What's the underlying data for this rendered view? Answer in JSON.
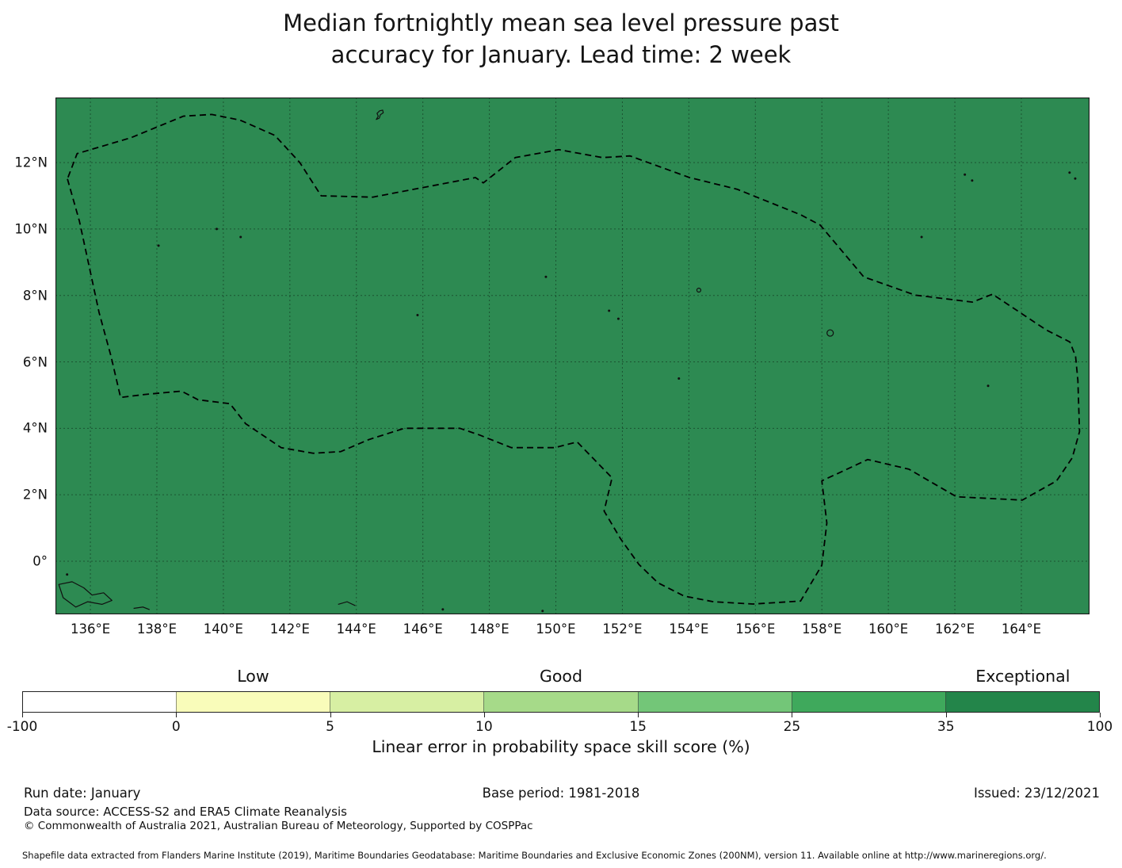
{
  "title": {
    "line1": "Median fortnightly mean sea level pressure past",
    "line2": "accuracy for January. Lead time: 2 week"
  },
  "chart_data": {
    "type": "heatmap",
    "subtype": "geographic EEZ skill-score map, Western Pacific (matplotlib style)",
    "title": "Median fortnightly mean sea level pressure past accuracy for January. Lead time: 2 week",
    "x_tick_labels": [
      "136°E",
      "138°E",
      "140°E",
      "142°E",
      "144°E",
      "146°E",
      "148°E",
      "150°E",
      "152°E",
      "154°E",
      "156°E",
      "158°E",
      "160°E",
      "162°E",
      "164°E"
    ],
    "x_tick_lons": [
      136,
      138,
      140,
      142,
      144,
      146,
      148,
      150,
      152,
      154,
      156,
      158,
      160,
      162,
      164
    ],
    "y_tick_labels": [
      "12°N",
      "10°N",
      "8°N",
      "6°N",
      "4°N",
      "2°N",
      "0°"
    ],
    "y_tick_lats": [
      12,
      10,
      8,
      6,
      4,
      2,
      0
    ],
    "lon_range": [
      134.95,
      166.05
    ],
    "lat_range": [
      -1.6,
      13.96
    ],
    "grid": true,
    "map_fill_color": "#2d8a52",
    "map_fill_meaning": "entire plotted area lies in the 35-100 (Exceptional) skill class",
    "boundary_style": "dashed black EEZ outline",
    "colorbar": {
      "label": "Linear error in probability space skill score (%)",
      "boundary_labels": [
        "-100",
        "0",
        "5",
        "10",
        "15",
        "25",
        "35",
        "100"
      ],
      "boundaries": [
        -100,
        0,
        5,
        10,
        15,
        25,
        35,
        100
      ],
      "segment_colors": [
        "#ffffff",
        "#f9fcba",
        "#d7efa3",
        "#a6da89",
        "#73c678",
        "#3fa95c",
        "#23854a"
      ],
      "category_labels": [
        {
          "text": "Low",
          "segment_index": 1
        },
        {
          "text": "Good",
          "segment_index": 3
        },
        {
          "text": "Exceptional",
          "segment_index": 6
        }
      ]
    },
    "eez_boundary_lonlat": [
      [
        135.31,
        11.51
      ],
      [
        135.67,
        10.24
      ],
      [
        135.98,
        8.8
      ],
      [
        136.26,
        7.49
      ],
      [
        136.62,
        6.17
      ],
      [
        136.91,
        4.93
      ],
      [
        137.64,
        5.02
      ],
      [
        138.74,
        5.12
      ],
      [
        139.24,
        4.86
      ],
      [
        140.2,
        4.74
      ],
      [
        140.67,
        4.14
      ],
      [
        141.74,
        3.42
      ],
      [
        142.7,
        3.25
      ],
      [
        143.53,
        3.3
      ],
      [
        144.37,
        3.66
      ],
      [
        145.44,
        4.0
      ],
      [
        147.11,
        4.0
      ],
      [
        147.7,
        3.8
      ],
      [
        148.66,
        3.42
      ],
      [
        149.97,
        3.42
      ],
      [
        150.64,
        3.59
      ],
      [
        151.69,
        2.51
      ],
      [
        151.45,
        1.51
      ],
      [
        151.95,
        0.67
      ],
      [
        152.5,
        -0.1
      ],
      [
        153.07,
        -0.65
      ],
      [
        153.86,
        -1.05
      ],
      [
        154.74,
        -1.22
      ],
      [
        155.93,
        -1.29
      ],
      [
        157.36,
        -1.2
      ],
      [
        158.0,
        -0.12
      ],
      [
        158.15,
        1.15
      ],
      [
        158.0,
        2.42
      ],
      [
        159.38,
        3.06
      ],
      [
        160.62,
        2.77
      ],
      [
        162.05,
        1.94
      ],
      [
        164.03,
        1.84
      ],
      [
        165.06,
        2.42
      ],
      [
        165.53,
        3.11
      ],
      [
        165.75,
        3.9
      ],
      [
        165.7,
        5.45
      ],
      [
        165.63,
        6.17
      ],
      [
        165.46,
        6.6
      ],
      [
        164.75,
        6.96
      ],
      [
        163.13,
        8.04
      ],
      [
        162.53,
        7.8
      ],
      [
        160.81,
        8.01
      ],
      [
        159.26,
        8.56
      ],
      [
        157.95,
        10.12
      ],
      [
        157.36,
        10.43
      ],
      [
        155.45,
        11.2
      ],
      [
        154.02,
        11.55
      ],
      [
        152.23,
        12.2
      ],
      [
        151.4,
        12.15
      ],
      [
        150.09,
        12.39
      ],
      [
        148.78,
        12.15
      ],
      [
        147.82,
        11.39
      ],
      [
        147.58,
        11.55
      ],
      [
        144.49,
        10.96
      ],
      [
        142.94,
        11.0
      ],
      [
        142.3,
        12.0
      ],
      [
        141.55,
        12.82
      ],
      [
        140.5,
        13.28
      ],
      [
        139.65,
        13.45
      ],
      [
        138.8,
        13.4
      ],
      [
        137.22,
        12.75
      ],
      [
        135.6,
        12.27
      ]
    ],
    "islands": {
      "dots": [
        [
          138.05,
          9.5
        ],
        [
          139.8,
          10.0
        ],
        [
          140.52,
          9.76
        ],
        [
          145.84,
          7.41
        ],
        [
          149.7,
          8.56
        ],
        [
          151.6,
          7.54
        ],
        [
          151.88,
          7.3
        ],
        [
          153.7,
          5.5
        ],
        [
          161.0,
          9.76
        ],
        [
          163.0,
          5.28
        ],
        [
          162.3,
          11.64
        ],
        [
          162.52,
          11.46
        ],
        [
          165.45,
          11.7
        ],
        [
          165.62,
          11.52
        ],
        [
          135.3,
          -0.4
        ],
        [
          146.6,
          -1.45
        ],
        [
          149.6,
          -1.5
        ]
      ],
      "rings": [
        {
          "lon": 158.25,
          "lat": 6.87,
          "r": 4
        },
        {
          "lon": 154.3,
          "lat": 8.16,
          "r": 2.5
        }
      ],
      "outlines": [
        [
          [
            144.6,
            13.3
          ],
          [
            144.66,
            13.4
          ],
          [
            144.62,
            13.48
          ],
          [
            144.7,
            13.56
          ],
          [
            144.79,
            13.58
          ],
          [
            144.81,
            13.5
          ],
          [
            144.72,
            13.44
          ],
          [
            144.69,
            13.34
          ]
        ],
        [
          [
            135.05,
            -0.7
          ],
          [
            135.45,
            -0.62
          ],
          [
            135.8,
            -0.8
          ],
          [
            136.05,
            -1.02
          ],
          [
            136.4,
            -0.95
          ],
          [
            136.65,
            -1.18
          ],
          [
            136.35,
            -1.3
          ],
          [
            135.92,
            -1.22
          ],
          [
            135.56,
            -1.38
          ],
          [
            135.18,
            -1.1
          ]
        ]
      ],
      "polylines": [
        [
          [
            137.3,
            -1.42
          ],
          [
            137.58,
            -1.38
          ],
          [
            137.78,
            -1.46
          ]
        ],
        [
          [
            143.45,
            -1.3
          ],
          [
            143.72,
            -1.22
          ],
          [
            143.97,
            -1.34
          ]
        ]
      ]
    }
  },
  "footer": {
    "run_date": "Run date: January",
    "base_period": "Base period: 1981-2018",
    "issued": "Issued: 23/12/2021",
    "data_source": "Data source: ACCESS-S2 and ERA5 Climate Reanalysis",
    "copyright": "© Commonwealth of Australia 2021, Australian Bureau of Meteorology, Supported by COSPPac",
    "shapefile_note": "Shapefile data extracted from Flanders Marine Institute (2019), Maritime Boundaries Geodatabase: Maritime Boundaries and Exclusive Economic Zones (200NM), version 11. Available online at http://www.marineregions.org/."
  }
}
